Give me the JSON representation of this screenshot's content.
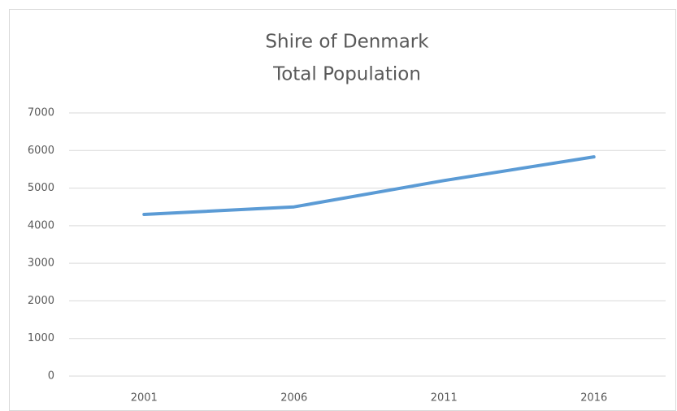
{
  "chart_data": {
    "type": "line",
    "title": [
      "Shire of Denmark",
      "Total Population"
    ],
    "categories": [
      "2001",
      "2006",
      "2011",
      "2016"
    ],
    "series": [
      {
        "name": "Total Population",
        "color": "#5b9bd5",
        "values": [
          4300,
          4500,
          5200,
          5830
        ]
      }
    ],
    "ylim": [
      0,
      7000
    ],
    "yticks": [
      0,
      1000,
      2000,
      3000,
      4000,
      5000,
      6000,
      7000
    ],
    "grid": true
  }
}
